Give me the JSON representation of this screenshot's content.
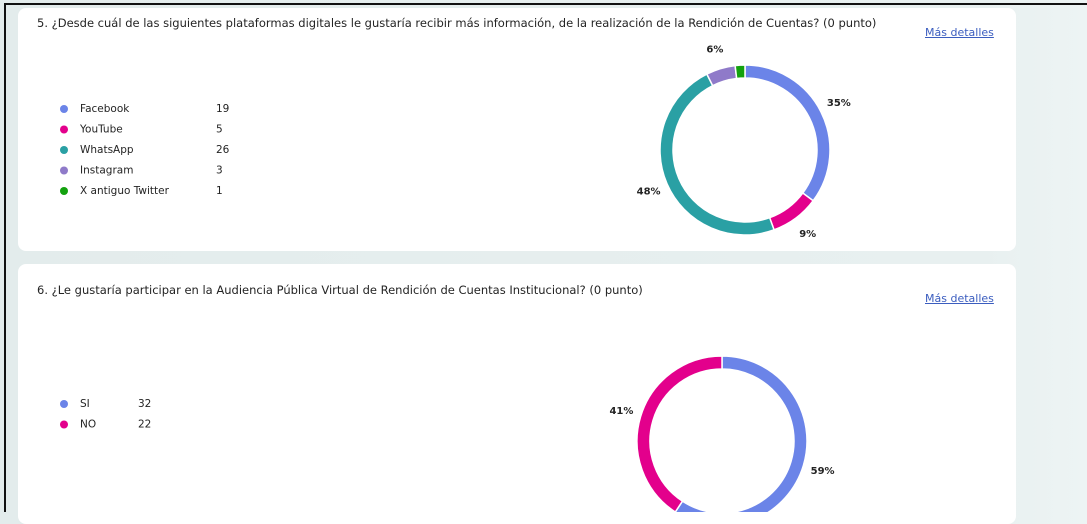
{
  "chart_data": [
    {
      "type": "donut",
      "title": "5. ¿Desde cuál de las siguientes plataformas digitales le gustaría recibir más información, de la realización de la Rendición de Cuentas? (0 punto)",
      "detail_link": "Más detalles",
      "categories": [
        "Facebook",
        "YouTube",
        "WhatsApp",
        "Instagram",
        "X antiguo Twitter"
      ],
      "values": [
        19,
        5,
        26,
        3,
        1
      ],
      "percent_labels": [
        "35%",
        "9%",
        "48%",
        "6%",
        null
      ],
      "colors": [
        "#6b84e8",
        "#e3008c",
        "#2aa0a4",
        "#8f7ac9",
        "#13a10e"
      ]
    },
    {
      "type": "donut",
      "title": "6. ¿Le gustaría participar en la Audiencia Pública Virtual de Rendición de Cuentas Institucional? (0 punto)",
      "detail_link": "Más detalles",
      "categories": [
        "SI",
        "NO"
      ],
      "values": [
        32,
        22
      ],
      "percent_labels": [
        "59%",
        "41%"
      ],
      "colors": [
        "#6b84e8",
        "#e3008c"
      ]
    }
  ]
}
